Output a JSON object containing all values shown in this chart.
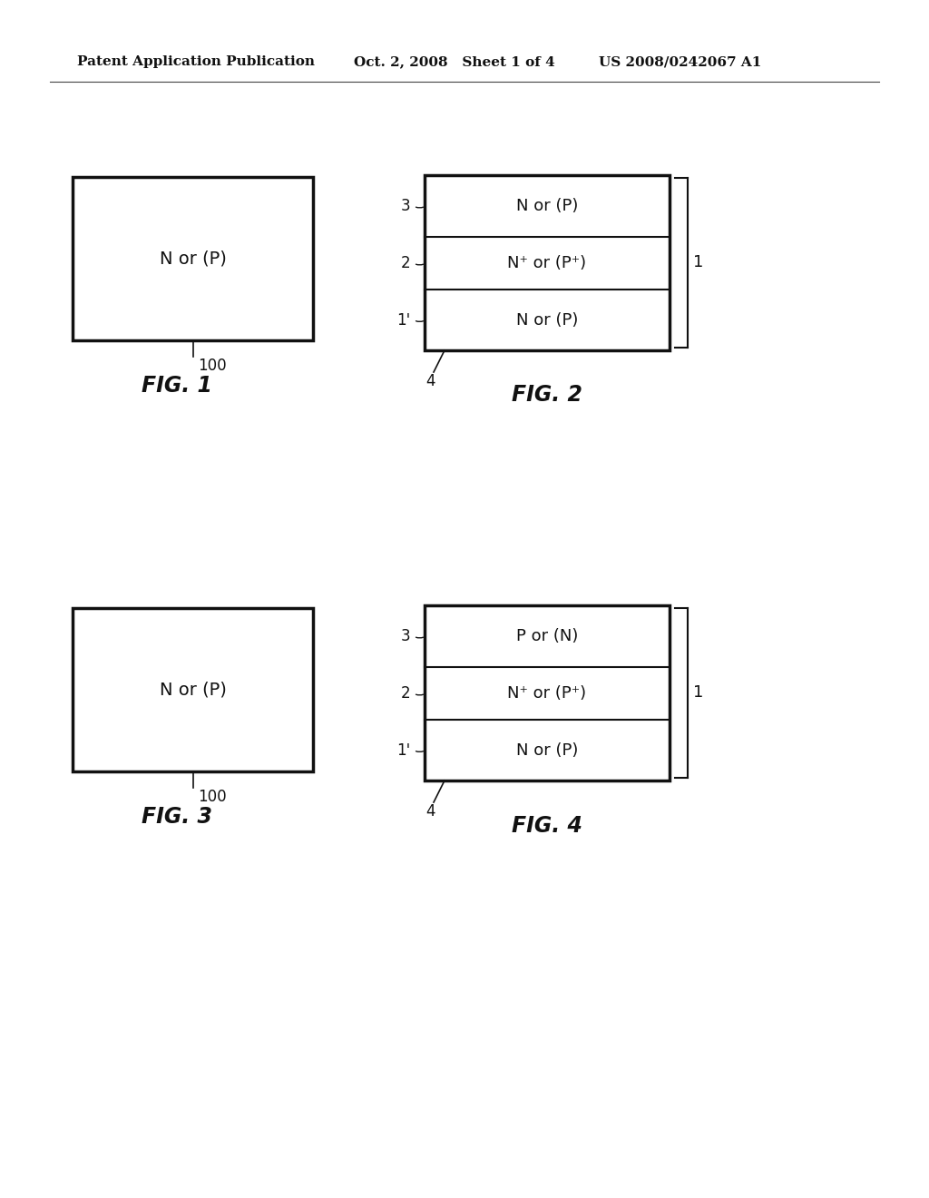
{
  "bg_color": "#ffffff",
  "header_left": "Patent Application Publication",
  "header_mid": "Oct. 2, 2008   Sheet 1 of 4",
  "header_right": "US 2008/0242067 A1",
  "fig1_label": "FIG. 1",
  "fig1_box_label": "N or (P)",
  "fig1_ref": "100",
  "fig2_label": "FIG. 2",
  "fig2_layers": [
    "N or (P)",
    "N⁺ or (P⁺)",
    "N or (P)"
  ],
  "fig2_layer_labels": [
    "3",
    "2",
    "1'"
  ],
  "fig2_bracket_label": "1",
  "fig2_ref": "4",
  "fig3_label": "FIG. 3",
  "fig3_box_label": "N or (P)",
  "fig3_ref": "100",
  "fig4_label": "FIG. 4",
  "fig4_layers": [
    "P or (N)",
    "N⁺ or (P⁺)",
    "N or (P)"
  ],
  "fig4_layer_labels": [
    "3",
    "2",
    "1'"
  ],
  "fig4_bracket_label": "1",
  "fig4_ref": "4"
}
